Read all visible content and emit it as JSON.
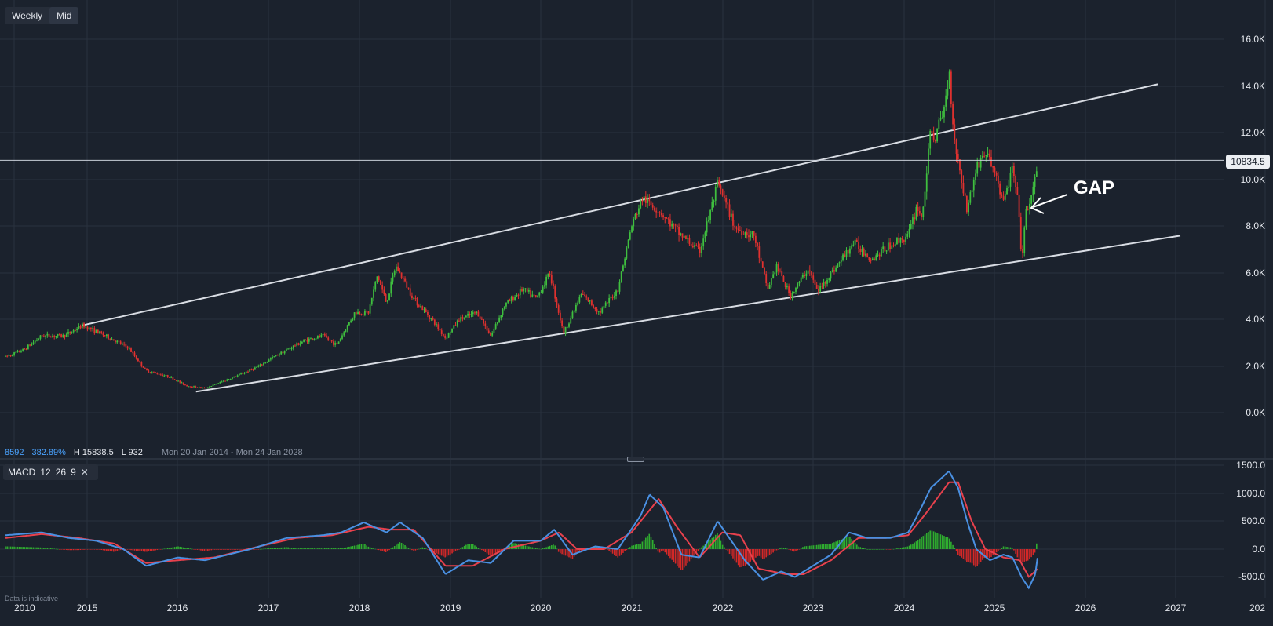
{
  "toolbar": {
    "interval_label": "Weekly",
    "price_type_label": "Mid"
  },
  "stats": {
    "value": "8592",
    "change_pct": "382.89%",
    "high": "H 15838.5",
    "low": "L 932",
    "range": "Mon 20 Jan 2014 - Mon 24 Jan 2028"
  },
  "current_price": "10834.5",
  "annotation": {
    "text": "GAP"
  },
  "macd_legend": {
    "name": "MACD",
    "fast": "12",
    "slow": "26",
    "signal": "9",
    "close_symbol": "✕"
  },
  "disclaimer": "Data is indicative",
  "colors": {
    "up": "#3fbf3f",
    "down": "#e0312f",
    "macd_line": "#4a90e2",
    "signal_line": "#e8414d",
    "hist_up": "#2fae2f",
    "hist_down": "#d42828",
    "trendline": "#d8dce3"
  },
  "chart_data": [
    {
      "type": "candlestick",
      "x_ticks": [
        "2010",
        "2015",
        "2016",
        "2017",
        "2018",
        "2019",
        "2020",
        "2021",
        "2022",
        "2023",
        "2024",
        "2025",
        "2026",
        "2027",
        "202"
      ],
      "y_ticks": [
        "16.0K",
        "14.0K",
        "12.0K",
        "10.0K",
        "8.0K",
        "6.0K",
        "4.0K",
        "2.0K",
        "0.0K"
      ],
      "ylim": [
        -1800,
        17600
      ],
      "xlim": [
        2014.1,
        2028.05
      ],
      "grid": true,
      "price_path": [
        [
          2014.1,
          2400
        ],
        [
          2014.3,
          2700
        ],
        [
          2014.5,
          3300
        ],
        [
          2014.75,
          3300
        ],
        [
          2014.95,
          3750
        ],
        [
          2015.2,
          3300
        ],
        [
          2015.45,
          2800
        ],
        [
          2015.65,
          1800
        ],
        [
          2015.9,
          1550
        ],
        [
          2016.1,
          1150
        ],
        [
          2016.3,
          1050
        ],
        [
          2016.6,
          1500
        ],
        [
          2016.9,
          2000
        ],
        [
          2017.1,
          2500
        ],
        [
          2017.4,
          3100
        ],
        [
          2017.6,
          3300
        ],
        [
          2017.75,
          2900
        ],
        [
          2017.95,
          4300
        ],
        [
          2018.1,
          4300
        ],
        [
          2018.2,
          5900
        ],
        [
          2018.3,
          4700
        ],
        [
          2018.4,
          6300
        ],
        [
          2018.6,
          4900
        ],
        [
          2018.8,
          4000
        ],
        [
          2018.95,
          3200
        ],
        [
          2019.1,
          4000
        ],
        [
          2019.3,
          4300
        ],
        [
          2019.45,
          3300
        ],
        [
          2019.6,
          4600
        ],
        [
          2019.8,
          5300
        ],
        [
          2019.95,
          4900
        ],
        [
          2020.1,
          6000
        ],
        [
          2020.25,
          3400
        ],
        [
          2020.45,
          5100
        ],
        [
          2020.65,
          4300
        ],
        [
          2020.85,
          5300
        ],
        [
          2021.0,
          8000
        ],
        [
          2021.12,
          9200
        ],
        [
          2021.3,
          8700
        ],
        [
          2021.5,
          7800
        ],
        [
          2021.75,
          6900
        ],
        [
          2021.95,
          9800
        ],
        [
          2022.15,
          7900
        ],
        [
          2022.35,
          7600
        ],
        [
          2022.5,
          5300
        ],
        [
          2022.6,
          6300
        ],
        [
          2022.75,
          5000
        ],
        [
          2022.95,
          6200
        ],
        [
          2023.05,
          5200
        ],
        [
          2023.3,
          6500
        ],
        [
          2023.45,
          7300
        ],
        [
          2023.65,
          6600
        ],
        [
          2023.85,
          7200
        ],
        [
          2024.05,
          7600
        ],
        [
          2024.15,
          8900
        ],
        [
          2024.2,
          8300
        ],
        [
          2024.3,
          12100
        ],
        [
          2024.35,
          11800
        ],
        [
          2024.45,
          13100
        ],
        [
          2024.5,
          14700
        ],
        [
          2024.55,
          12100
        ],
        [
          2024.6,
          10800
        ],
        [
          2024.7,
          8700
        ],
        [
          2024.8,
          10500
        ],
        [
          2024.9,
          11200
        ],
        [
          2025.0,
          10400
        ],
        [
          2025.1,
          9000
        ],
        [
          2025.2,
          10500
        ],
        [
          2025.28,
          8400
        ],
        [
          2025.3,
          6200
        ],
        [
          2025.35,
          8700
        ],
        [
          2025.42,
          9300
        ],
        [
          2025.48,
          10834.5
        ]
      ],
      "trendlines": [
        {
          "x1": 2014.95,
          "y1": 3750,
          "x2": 2026.8,
          "y2": 14100
        },
        {
          "x1": 2016.2,
          "y1": 900,
          "x2": 2027.05,
          "y2": 7600
        }
      ]
    },
    {
      "type": "macd",
      "y_ticks": [
        "1500.0",
        "1000.0",
        "500.0",
        "0.0",
        "-500.0"
      ],
      "ylim": [
        -800,
        1550
      ],
      "macd_path": [
        [
          2014.1,
          250
        ],
        [
          2014.5,
          300
        ],
        [
          2014.8,
          200
        ],
        [
          2015.1,
          150
        ],
        [
          2015.4,
          0
        ],
        [
          2015.65,
          -300
        ],
        [
          2016.0,
          -150
        ],
        [
          2016.3,
          -200
        ],
        [
          2016.8,
          0
        ],
        [
          2017.2,
          200
        ],
        [
          2017.6,
          250
        ],
        [
          2017.8,
          300
        ],
        [
          2018.05,
          480
        ],
        [
          2018.3,
          300
        ],
        [
          2018.45,
          480
        ],
        [
          2018.7,
          200
        ],
        [
          2018.95,
          -450
        ],
        [
          2019.2,
          -200
        ],
        [
          2019.45,
          -250
        ],
        [
          2019.7,
          150
        ],
        [
          2020.0,
          150
        ],
        [
          2020.15,
          350
        ],
        [
          2020.35,
          -100
        ],
        [
          2020.6,
          50
        ],
        [
          2020.85,
          0
        ],
        [
          2021.1,
          600
        ],
        [
          2021.2,
          980
        ],
        [
          2021.35,
          750
        ],
        [
          2021.55,
          -100
        ],
        [
          2021.75,
          -150
        ],
        [
          2021.95,
          500
        ],
        [
          2022.1,
          150
        ],
        [
          2022.25,
          -200
        ],
        [
          2022.45,
          -550
        ],
        [
          2022.65,
          -400
        ],
        [
          2022.8,
          -500
        ],
        [
          2023.0,
          -300
        ],
        [
          2023.2,
          -100
        ],
        [
          2023.4,
          300
        ],
        [
          2023.6,
          200
        ],
        [
          2023.85,
          200
        ],
        [
          2024.05,
          300
        ],
        [
          2024.15,
          600
        ],
        [
          2024.3,
          1100
        ],
        [
          2024.5,
          1400
        ],
        [
          2024.6,
          1100
        ],
        [
          2024.7,
          500
        ],
        [
          2024.8,
          0
        ],
        [
          2024.95,
          -200
        ],
        [
          2025.1,
          -100
        ],
        [
          2025.2,
          -150
        ],
        [
          2025.3,
          -500
        ],
        [
          2025.38,
          -700
        ],
        [
          2025.45,
          -450
        ],
        [
          2025.48,
          -100
        ]
      ],
      "signal_path": [
        [
          2014.1,
          200
        ],
        [
          2014.5,
          270
        ],
        [
          2014.9,
          200
        ],
        [
          2015.3,
          100
        ],
        [
          2015.65,
          -250
        ],
        [
          2016.0,
          -200
        ],
        [
          2016.4,
          -150
        ],
        [
          2016.9,
          50
        ],
        [
          2017.3,
          200
        ],
        [
          2017.7,
          250
        ],
        [
          2018.1,
          400
        ],
        [
          2018.35,
          350
        ],
        [
          2018.6,
          350
        ],
        [
          2018.95,
          -300
        ],
        [
          2019.25,
          -300
        ],
        [
          2019.6,
          0
        ],
        [
          2020.0,
          150
        ],
        [
          2020.2,
          300
        ],
        [
          2020.4,
          0
        ],
        [
          2020.7,
          0
        ],
        [
          2021.0,
          300
        ],
        [
          2021.3,
          900
        ],
        [
          2021.5,
          400
        ],
        [
          2021.75,
          -150
        ],
        [
          2022.0,
          300
        ],
        [
          2022.2,
          250
        ],
        [
          2022.4,
          -350
        ],
        [
          2022.7,
          -450
        ],
        [
          2022.9,
          -450
        ],
        [
          2023.2,
          -200
        ],
        [
          2023.5,
          200
        ],
        [
          2023.8,
          200
        ],
        [
          2024.05,
          250
        ],
        [
          2024.25,
          650
        ],
        [
          2024.5,
          1200
        ],
        [
          2024.6,
          1200
        ],
        [
          2024.75,
          500
        ],
        [
          2024.9,
          0
        ],
        [
          2025.1,
          -150
        ],
        [
          2025.28,
          -200
        ],
        [
          2025.38,
          -500
        ],
        [
          2025.48,
          -350
        ]
      ],
      "histogram_range": [
        2014.1,
        2025.48
      ]
    }
  ]
}
